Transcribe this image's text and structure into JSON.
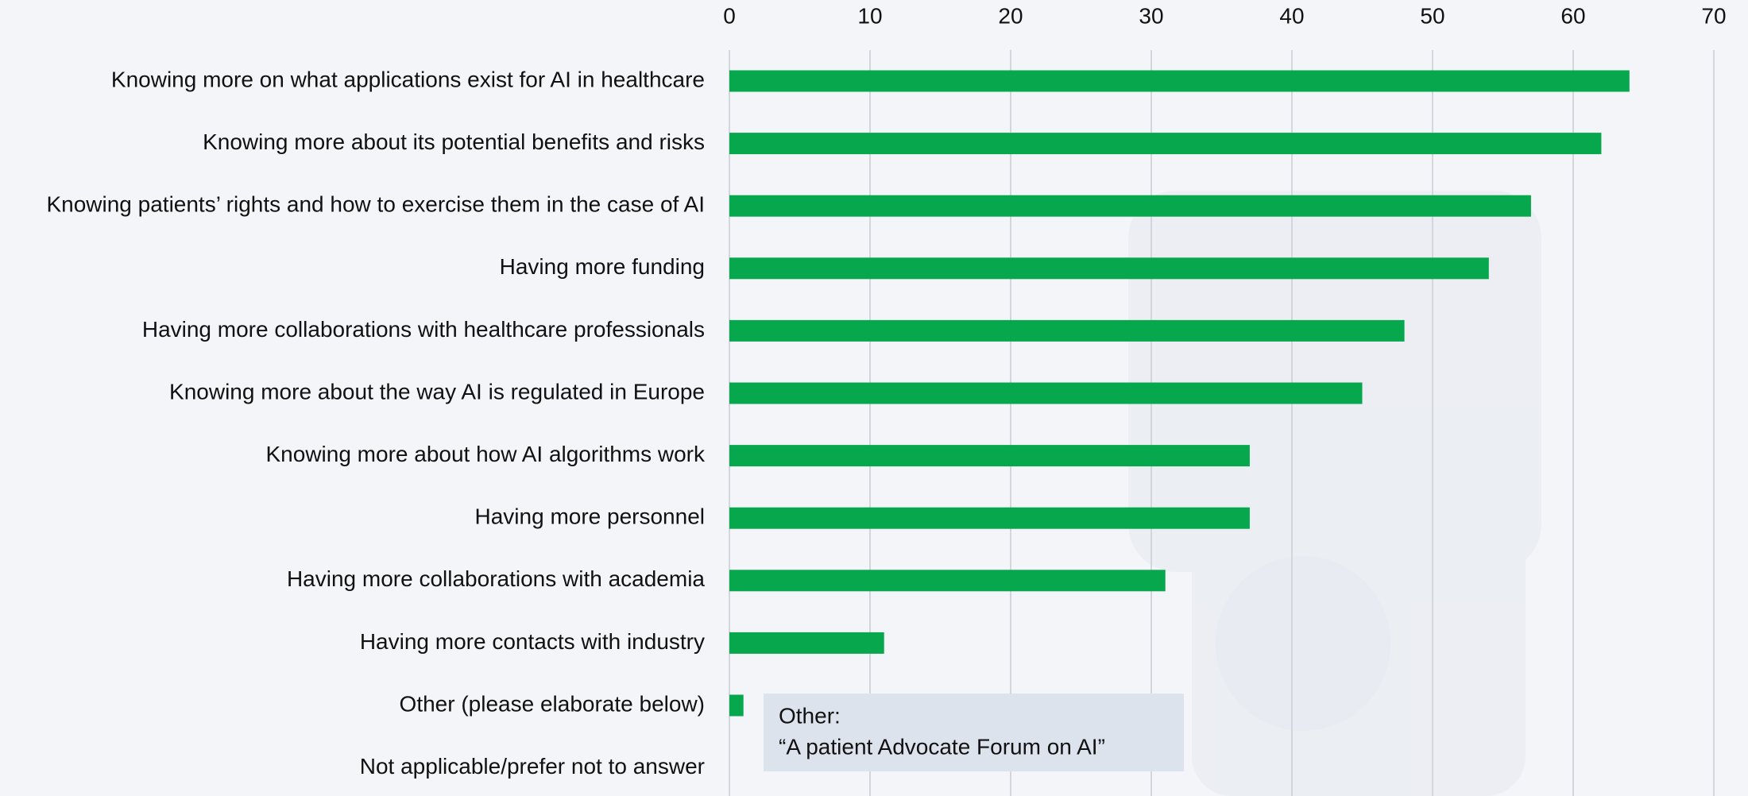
{
  "chart_data": {
    "type": "bar",
    "orientation": "horizontal",
    "categories": [
      "Knowing more on what applications exist for AI in healthcare",
      "Knowing more about its potential benefits and risks",
      "Knowing patients’ rights and how to exercise them in the case of AI",
      "Having more funding",
      "Having more collaborations with healthcare professionals",
      "Knowing more about the way AI is regulated in Europe",
      "Knowing more about how AI algorithms work",
      "Having more personnel",
      "Having more collaborations with academia",
      "Having more contacts with industry",
      "Other (please elaborate below)",
      "Not applicable/prefer not to answer"
    ],
    "values": [
      64,
      62,
      57,
      54,
      48,
      45,
      37,
      37,
      31,
      11,
      1,
      0
    ],
    "color": "#06a74d",
    "xlim": [
      0,
      70
    ],
    "xticks": [
      0,
      10,
      20,
      30,
      40,
      50,
      60,
      70
    ],
    "grid": true,
    "annotation": [
      "Other:",
      "“A patient Advocate Forum on AI”"
    ]
  }
}
